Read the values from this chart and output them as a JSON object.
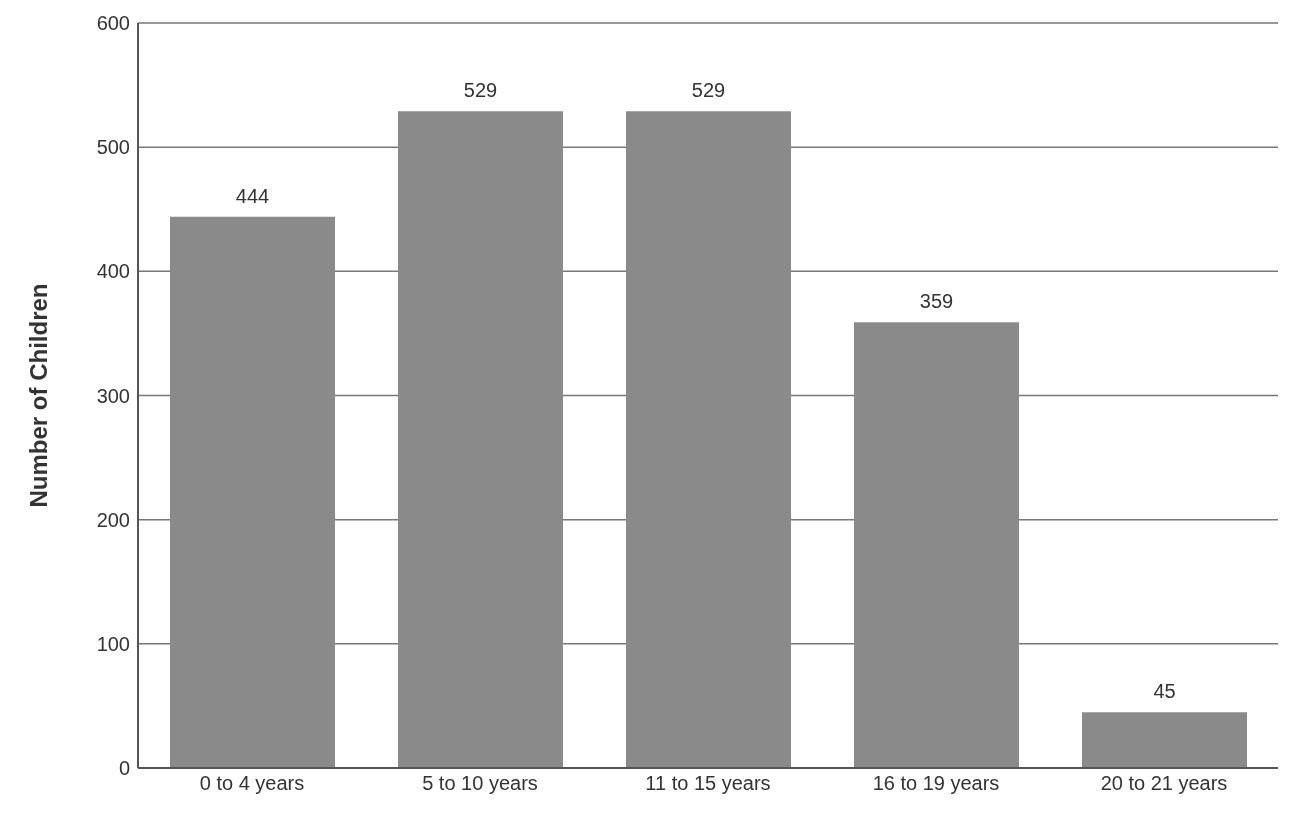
{
  "chart_data": {
    "type": "bar",
    "ylabel": "Number of Children",
    "categories": [
      "0 to 4 years",
      "5 to 10 years",
      "11 to 15 years",
      "16 to 19 years",
      "20 to 21 years"
    ],
    "values": [
      444,
      529,
      529,
      359,
      45
    ],
    "color": "#8a8a8a",
    "ylim": [
      0,
      600
    ],
    "yticks": [
      0,
      100,
      200,
      300,
      400,
      500,
      600
    ],
    "grid": "y",
    "data_labels": true
  }
}
